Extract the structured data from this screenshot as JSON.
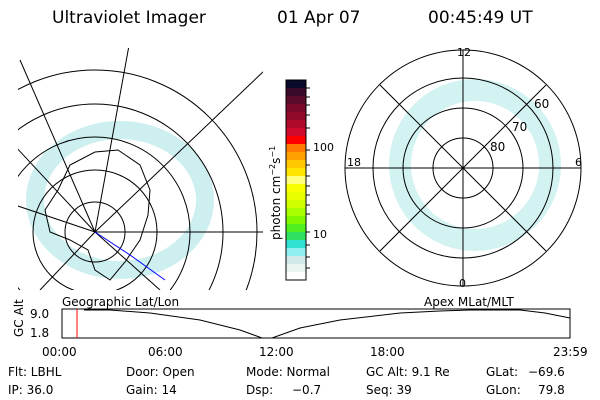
{
  "header": {
    "instrument": "Ultraviolet Imager",
    "date": "01 Apr 07",
    "time": "00:45:49 UT"
  },
  "colorbar": {
    "unit": "photon cm",
    "unit_sup1": "−2",
    "unit_mid": "s",
    "unit_sup2": "−1",
    "ticks": [
      "100",
      "10"
    ],
    "colors": [
      "#0a0a2a",
      "#3a0a2a",
      "#5a0a2a",
      "#7a0a2a",
      "#900a2a",
      "#b00a2a",
      "#d00a2a",
      "#ff0000",
      "#ff7a00",
      "#ffa000",
      "#ffc800",
      "#ffe600",
      "#ffff80",
      "#f8ff00",
      "#e8ff00",
      "#d0ff00",
      "#a8ff00",
      "#80f800",
      "#50f020",
      "#30e060",
      "#30e0d0",
      "#90f0f0",
      "#d0e8e8",
      "#e8f4f0",
      "#ffffff"
    ]
  },
  "polar_plot": {
    "labels": {
      "top": "12",
      "bottom": "0",
      "left": "18",
      "right": "6"
    },
    "lat_labels": [
      "60",
      "70",
      "80"
    ]
  },
  "timeline": {
    "ylabel": "GC Alt",
    "yticks": [
      "9.0",
      "1.8"
    ],
    "xticks": [
      "00:00",
      "06:00",
      "12:00",
      "18:00",
      "23:59"
    ],
    "left_label": "Geographic Lat/Lon",
    "right_label": "Apex MLat/MLT",
    "cursor_time": "00:45:49"
  },
  "info": {
    "filter": "Flt: LBHL",
    "ip": "IP: 36.0",
    "door": "Door: Open",
    "gain": "Gain: 14",
    "mode": "Mode: Normal",
    "dsp_label": "Dsp:",
    "dsp_value": "−0.7",
    "gc_alt": "GC Alt: 9.1 Re",
    "seq": "Seq: 39",
    "glat_label": "GLat:",
    "glat_value": "−69.6",
    "glon_label": "GLon:",
    "glon_value": "79.8"
  },
  "colors": {
    "cursor": "#ff0000",
    "aurora": "#40e0e0",
    "coast_blue": "#0000ff"
  }
}
